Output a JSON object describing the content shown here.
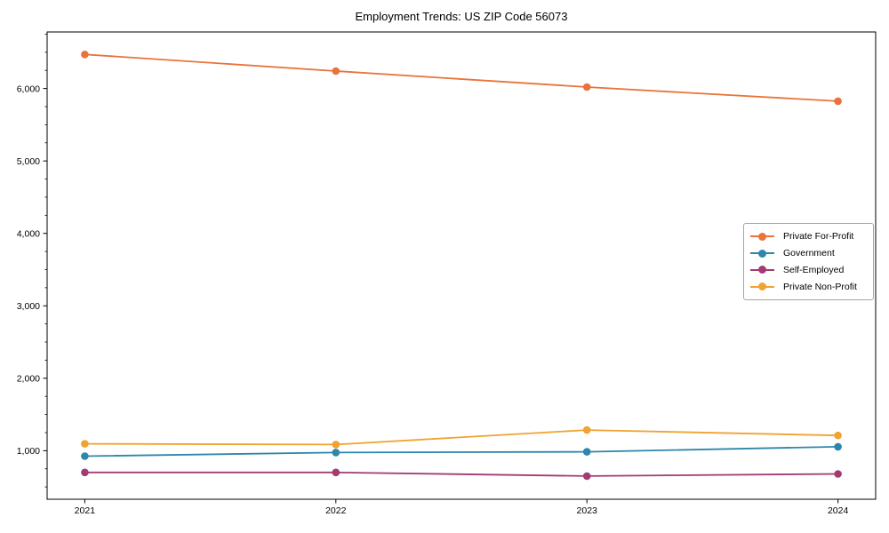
{
  "page": {
    "background": "#ffffff"
  },
  "chart_data": {
    "type": "line",
    "title": "Employment Trends: US ZIP Code 56073",
    "xlabel": "",
    "ylabel": "",
    "categories": [
      "2021",
      "2022",
      "2023",
      "2024"
    ],
    "series": [
      {
        "name": "Private For-Profit",
        "color": "#E8743B",
        "values": [
          6470,
          6240,
          6020,
          5825
        ]
      },
      {
        "name": "Government",
        "color": "#2E86AB",
        "values": [
          925,
          975,
          985,
          1055
        ]
      },
      {
        "name": "Self-Employed",
        "color": "#A23B72",
        "values": [
          700,
          700,
          650,
          680
        ]
      },
      {
        "name": "Private Non-Profit",
        "color": "#F0A330",
        "values": [
          1095,
          1085,
          1285,
          1210
        ]
      }
    ],
    "ylim": [
      330,
      6780
    ],
    "yticks": [
      1000,
      2000,
      3000,
      4000,
      5000,
      6000
    ],
    "ytick_labels": [
      "1,000",
      "2,000",
      "3,000",
      "4,000",
      "5,000",
      "6,000"
    ],
    "minor_ytick_step": 250,
    "grid": false,
    "legend_position": "center-right",
    "marker": "circle"
  }
}
